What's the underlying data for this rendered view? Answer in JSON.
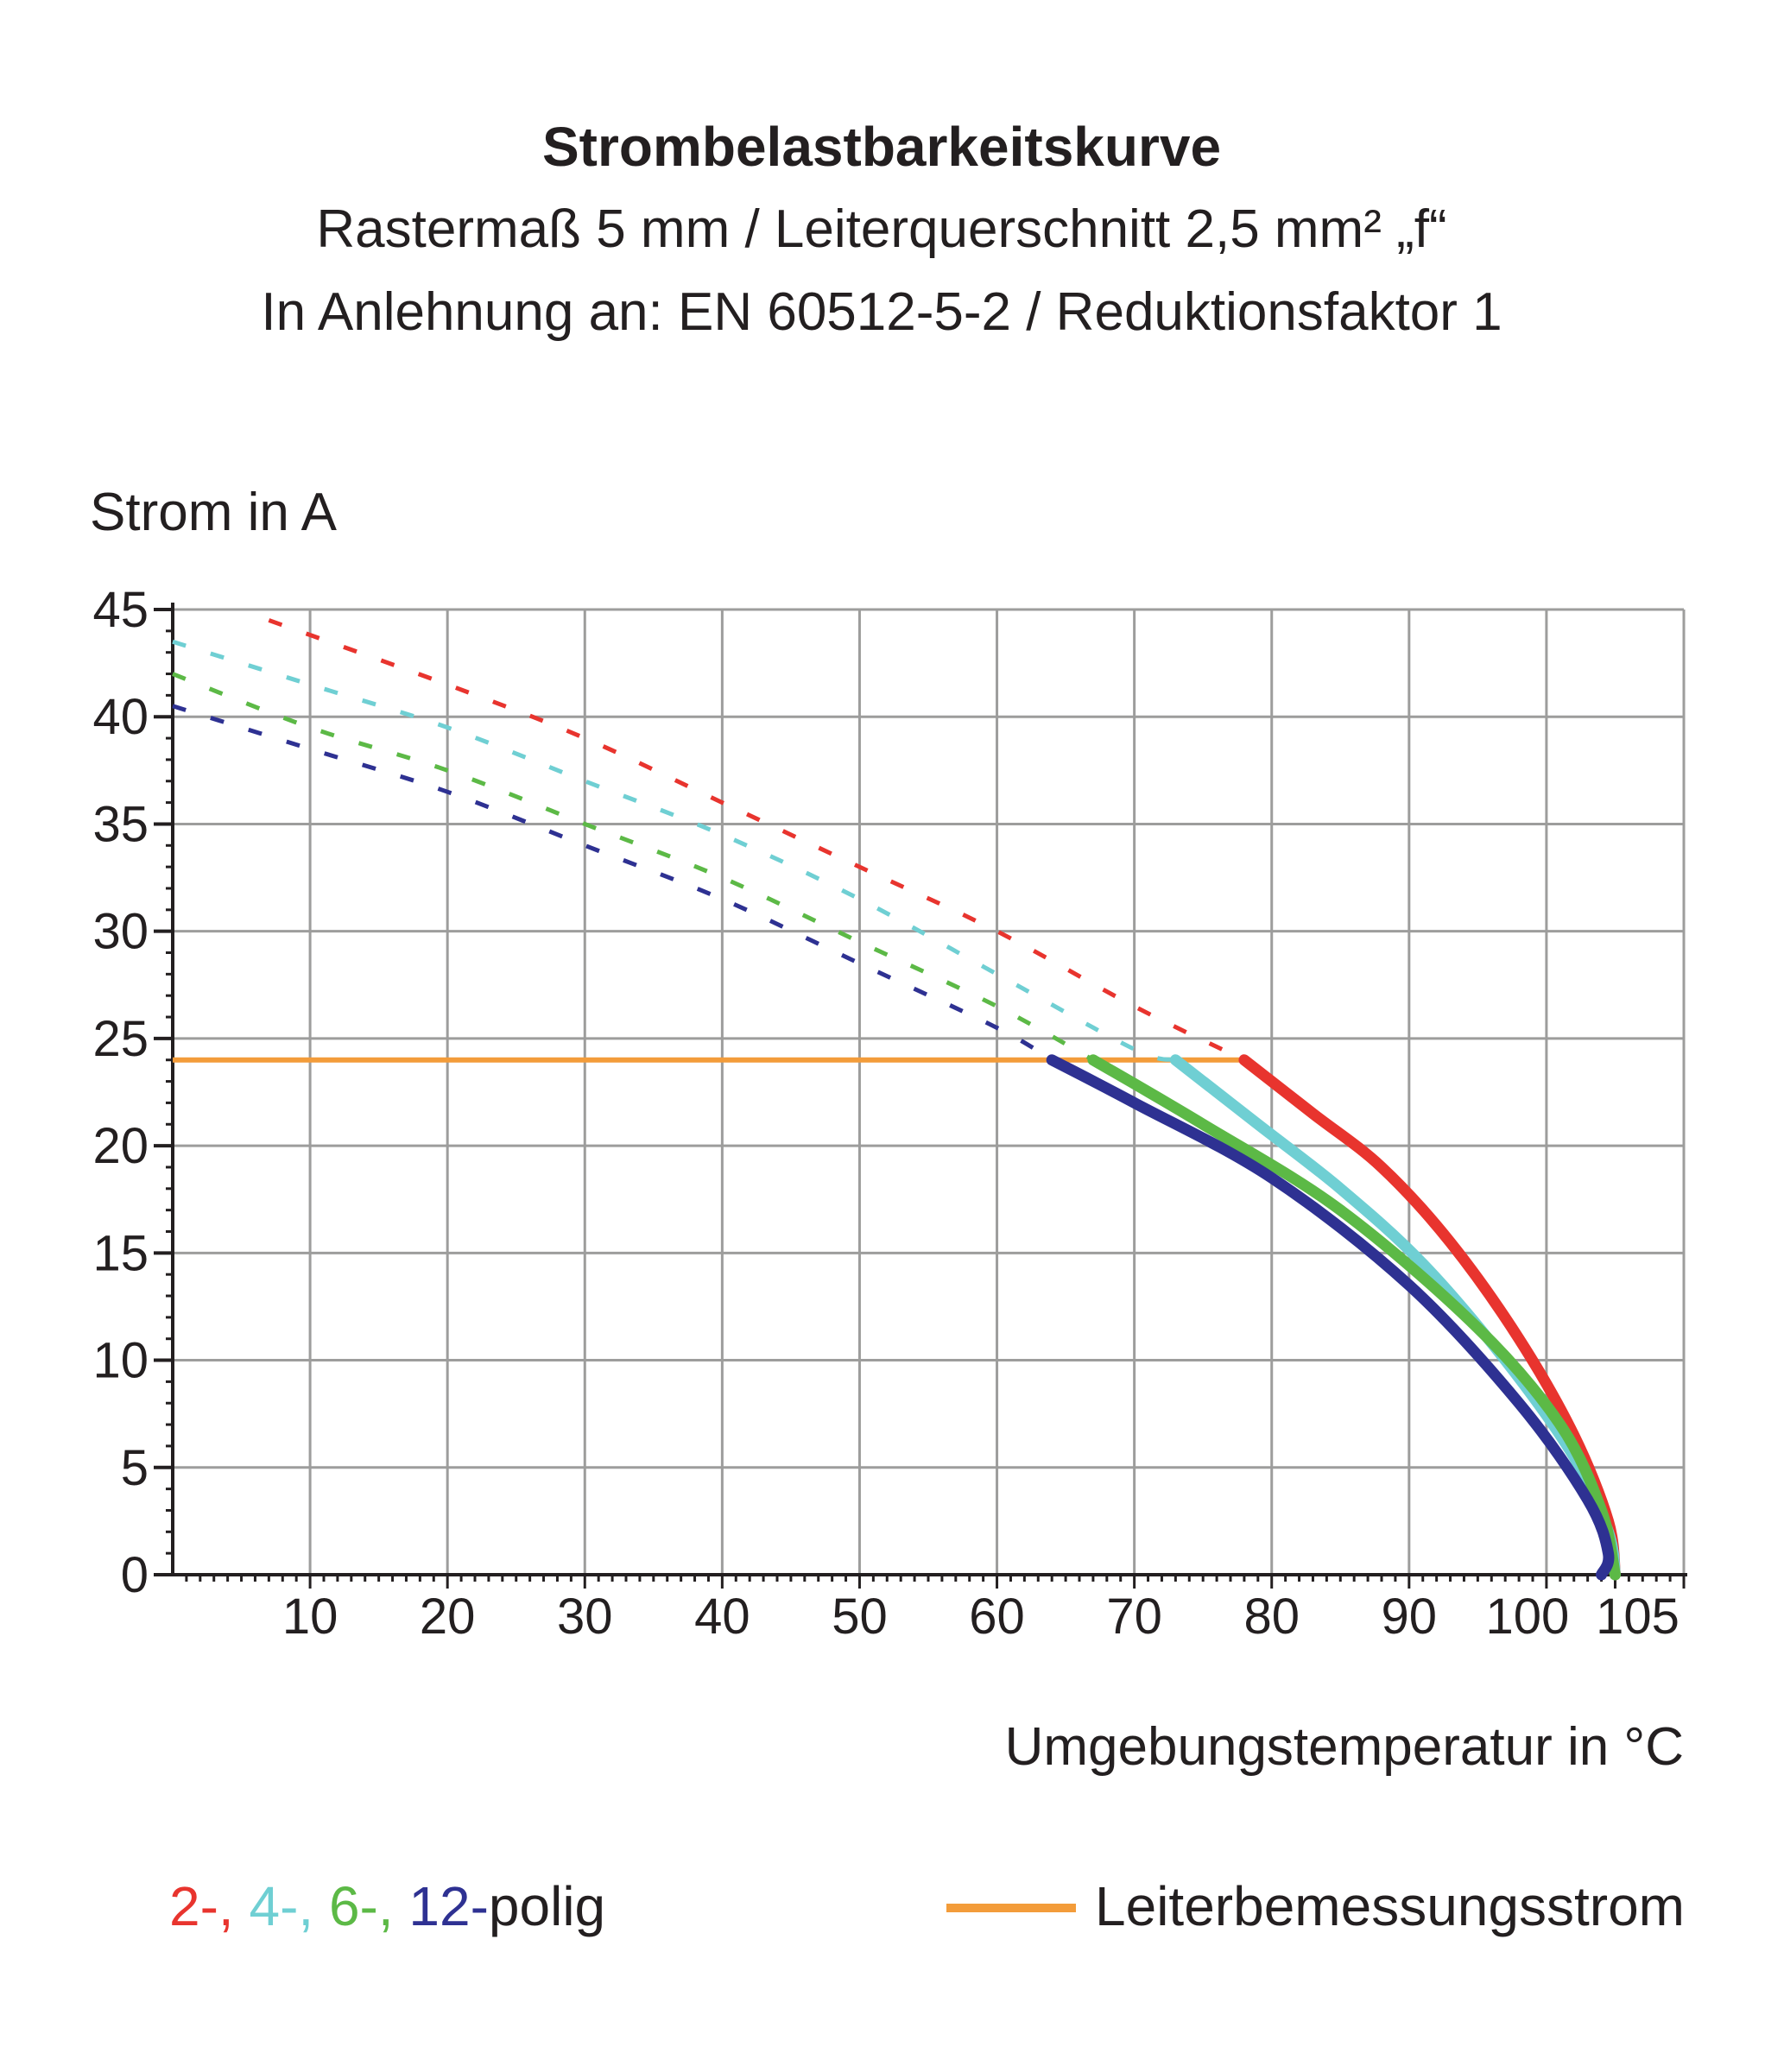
{
  "header": {
    "title": "Strombelastbarkeitskurve",
    "subtitle_1": "Rastermaß 5 mm / Leiterquerschnitt 2,5 mm² „f“",
    "subtitle_2": "In Anlehnung an: EN 60512-5-2 / Reduktionsfaktor 1"
  },
  "chart_data": {
    "type": "line",
    "ylabel": "Strom in A",
    "xlabel": "Umgebungstemperatur in °C",
    "xlim": [
      0,
      110
    ],
    "ylim": [
      0,
      45
    ],
    "x_ticks": [
      10,
      20,
      30,
      40,
      50,
      60,
      70,
      80,
      90,
      100,
      105
    ],
    "x_tick_labels": [
      "10",
      "20",
      "30",
      "40",
      "50",
      "60",
      "70",
      "80",
      "90",
      "100",
      "105"
    ],
    "y_ticks": [
      0,
      5,
      10,
      15,
      20,
      25,
      30,
      35,
      40,
      45
    ],
    "y_tick_labels": [
      "0",
      "5",
      "10",
      "15",
      "20",
      "25",
      "30",
      "35",
      "40",
      "45"
    ],
    "grid": true,
    "series": [
      {
        "name": "2-",
        "color": "#e8342e",
        "dashed": [
          [
            7,
            44.5
          ],
          [
            20,
            41.5
          ],
          [
            30,
            39
          ],
          [
            40,
            36
          ],
          [
            50,
            33
          ],
          [
            60,
            30
          ],
          [
            70,
            26.5
          ],
          [
            78,
            24
          ]
        ],
        "solid": [
          [
            78,
            24
          ],
          [
            83,
            21.5
          ],
          [
            88,
            19
          ],
          [
            93,
            15.5
          ],
          [
            98,
            11
          ],
          [
            102,
            6.5
          ],
          [
            104.5,
            2.5
          ],
          [
            105,
            0
          ]
        ]
      },
      {
        "name": "4-",
        "color": "#6fcfd3",
        "dashed": [
          [
            0,
            43.5
          ],
          [
            10,
            41.5
          ],
          [
            20,
            39.5
          ],
          [
            30,
            37
          ],
          [
            40,
            34.5
          ],
          [
            50,
            31.5
          ],
          [
            60,
            28
          ],
          [
            70,
            24.5
          ],
          [
            73,
            24
          ]
        ],
        "solid": [
          [
            73,
            24
          ],
          [
            79,
            21
          ],
          [
            85,
            18
          ],
          [
            91,
            14.5
          ],
          [
            97,
            10
          ],
          [
            102,
            5.5
          ],
          [
            104.5,
            2
          ],
          [
            105,
            0
          ]
        ]
      },
      {
        "name": "6-",
        "color": "#5cb946",
        "dashed": [
          [
            0,
            42
          ],
          [
            10,
            39.5
          ],
          [
            20,
            37.5
          ],
          [
            30,
            35
          ],
          [
            40,
            32.5
          ],
          [
            50,
            29.5
          ],
          [
            60,
            26.5
          ],
          [
            67,
            24
          ]
        ],
        "solid": [
          [
            67,
            24
          ],
          [
            75,
            21
          ],
          [
            85,
            17
          ],
          [
            95,
            11.5
          ],
          [
            101,
            7
          ],
          [
            104,
            3
          ],
          [
            105,
            0
          ]
        ]
      },
      {
        "name": "12-",
        "color": "#2e3192",
        "dashed": [
          [
            0,
            40.5
          ],
          [
            10,
            38.5
          ],
          [
            20,
            36.5
          ],
          [
            30,
            34
          ],
          [
            40,
            31.5
          ],
          [
            50,
            28.5
          ],
          [
            60,
            25.5
          ],
          [
            64,
            24
          ]
        ],
        "solid": [
          [
            64,
            24
          ],
          [
            70,
            22
          ],
          [
            80,
            18.5
          ],
          [
            90,
            13.5
          ],
          [
            98,
            8
          ],
          [
            103,
            3.5
          ],
          [
            104.5,
            1
          ],
          [
            104,
            0
          ]
        ]
      }
    ],
    "rated_current": {
      "name": "Leiterbemessungsstrom",
      "value": 24,
      "x_range": [
        0,
        78
      ],
      "color": "#f39c3a"
    },
    "legend_position": "bottom"
  },
  "legend": {
    "items": [
      {
        "label": "2-",
        "color": "#e8342e"
      },
      {
        "label": ",",
        "color": "#e8342e"
      },
      {
        "label": " 4-",
        "color": "#6fcfd3"
      },
      {
        "label": ",",
        "color": "#6fcfd3"
      },
      {
        "label": " 6-",
        "color": "#5cb946"
      },
      {
        "label": ",",
        "color": "#5cb946"
      },
      {
        "label": " 12-",
        "color": "#2e3192"
      },
      {
        "label": "polig",
        "color": "#231f20"
      }
    ],
    "rated_label": "Leiterbemessungsstrom"
  }
}
